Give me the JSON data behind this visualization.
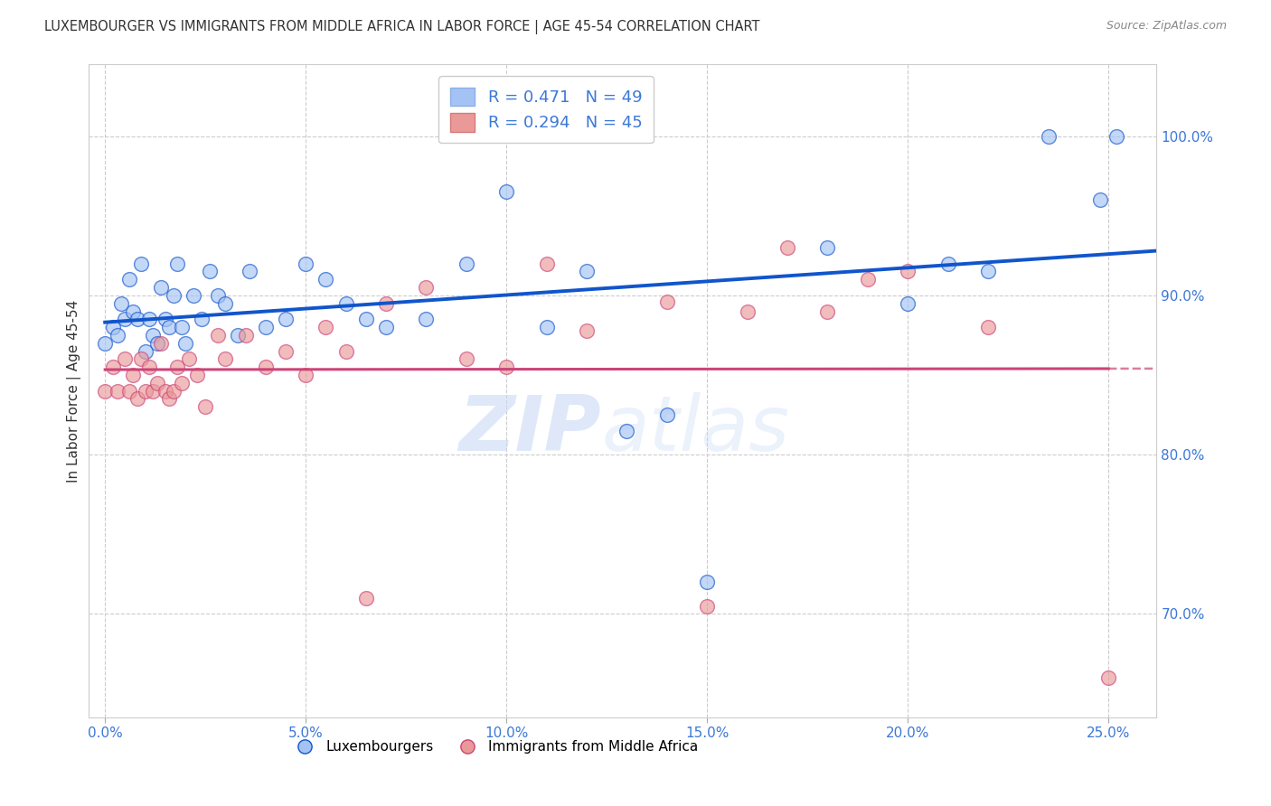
{
  "title": "LUXEMBOURGER VS IMMIGRANTS FROM MIDDLE AFRICA IN LABOR FORCE | AGE 45-54 CORRELATION CHART",
  "source": "Source: ZipAtlas.com",
  "ylabel": "In Labor Force | Age 45-54",
  "xlabel_ticks": [
    "0.0%",
    "5.0%",
    "10.0%",
    "15.0%",
    "20.0%",
    "25.0%"
  ],
  "xlabel_vals": [
    0.0,
    0.05,
    0.1,
    0.15,
    0.2,
    0.25
  ],
  "ylabel_ticks": [
    "70.0%",
    "80.0%",
    "90.0%",
    "100.0%"
  ],
  "ylabel_vals": [
    0.7,
    0.8,
    0.9,
    1.0
  ],
  "ylim": [
    0.635,
    1.045
  ],
  "xlim": [
    -0.004,
    0.262
  ],
  "blue_R": 0.471,
  "pink_R": 0.294,
  "blue_N": 49,
  "pink_N": 45,
  "blue_color": "#a4c2f4",
  "pink_color": "#ea9999",
  "blue_line_color": "#1155cc",
  "pink_line_color": "#cc4477",
  "legend_labels": [
    "Luxembourgers",
    "Immigrants from Middle Africa"
  ],
  "blue_scatter_x": [
    0.0,
    0.002,
    0.003,
    0.004,
    0.005,
    0.006,
    0.007,
    0.008,
    0.009,
    0.01,
    0.011,
    0.012,
    0.013,
    0.014,
    0.015,
    0.016,
    0.017,
    0.018,
    0.019,
    0.02,
    0.022,
    0.024,
    0.026,
    0.028,
    0.03,
    0.033,
    0.036,
    0.04,
    0.045,
    0.05,
    0.055,
    0.06,
    0.065,
    0.07,
    0.08,
    0.09,
    0.1,
    0.11,
    0.12,
    0.13,
    0.14,
    0.15,
    0.18,
    0.2,
    0.21,
    0.22,
    0.235,
    0.248,
    0.252
  ],
  "blue_scatter_y": [
    0.87,
    0.88,
    0.875,
    0.895,
    0.885,
    0.91,
    0.89,
    0.885,
    0.92,
    0.865,
    0.885,
    0.875,
    0.87,
    0.905,
    0.885,
    0.88,
    0.9,
    0.92,
    0.88,
    0.87,
    0.9,
    0.885,
    0.915,
    0.9,
    0.895,
    0.875,
    0.915,
    0.88,
    0.885,
    0.92,
    0.91,
    0.895,
    0.885,
    0.88,
    0.885,
    0.92,
    0.965,
    0.88,
    0.915,
    0.815,
    0.825,
    0.72,
    0.93,
    0.895,
    0.92,
    0.915,
    1.0,
    0.96,
    1.0
  ],
  "pink_scatter_x": [
    0.0,
    0.002,
    0.003,
    0.005,
    0.006,
    0.007,
    0.008,
    0.009,
    0.01,
    0.011,
    0.012,
    0.013,
    0.014,
    0.015,
    0.016,
    0.017,
    0.018,
    0.019,
    0.021,
    0.023,
    0.025,
    0.028,
    0.03,
    0.035,
    0.04,
    0.045,
    0.05,
    0.055,
    0.06,
    0.065,
    0.07,
    0.08,
    0.09,
    0.1,
    0.11,
    0.12,
    0.14,
    0.15,
    0.16,
    0.17,
    0.18,
    0.19,
    0.2,
    0.22,
    0.25
  ],
  "pink_scatter_y": [
    0.84,
    0.855,
    0.84,
    0.86,
    0.84,
    0.85,
    0.835,
    0.86,
    0.84,
    0.855,
    0.84,
    0.845,
    0.87,
    0.84,
    0.835,
    0.84,
    0.855,
    0.845,
    0.86,
    0.85,
    0.83,
    0.875,
    0.86,
    0.875,
    0.855,
    0.865,
    0.85,
    0.88,
    0.865,
    0.71,
    0.895,
    0.905,
    0.86,
    0.855,
    0.92,
    0.878,
    0.896,
    0.705,
    0.89,
    0.93,
    0.89,
    0.91,
    0.915,
    0.88,
    0.66
  ]
}
